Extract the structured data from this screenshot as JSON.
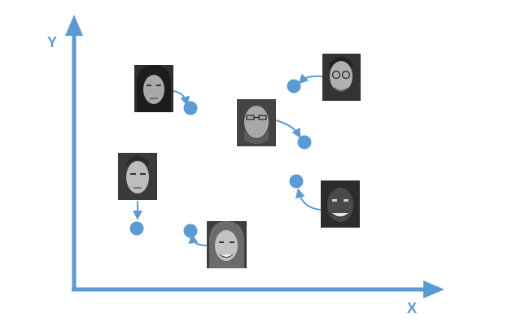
{
  "axes": {
    "x_label": "X",
    "y_label": "Y"
  },
  "colors": {
    "accent": "#5B9BD5",
    "photo_bg": "#3a3a3a",
    "skin": "#b7b7b7",
    "hair": "#2a2a2a"
  },
  "faces": [
    {
      "name": "woman-dark-hair",
      "icon": "face-photo"
    },
    {
      "name": "man-glasses-beard",
      "icon": "face-photo"
    },
    {
      "name": "man-glasses-top-right",
      "icon": "face-photo"
    },
    {
      "name": "man-short-hair-left",
      "icon": "face-photo"
    },
    {
      "name": "man-smiling-right",
      "icon": "face-photo"
    },
    {
      "name": "man-long-hair-bottom",
      "icon": "face-photo"
    }
  ]
}
